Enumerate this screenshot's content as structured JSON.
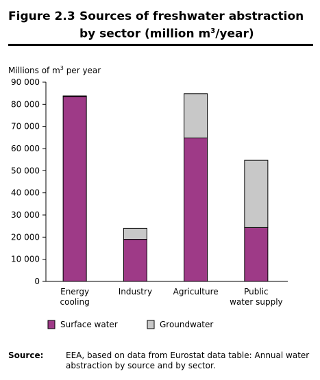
{
  "figure": {
    "number": "Figure 2.3",
    "title_line1": "Sources of freshwater abstraction",
    "title_line2_prefix": "by sector (million m",
    "title_line2_sup": "3",
    "title_line2_suffix": "/year)"
  },
  "chart_data": {
    "type": "bar",
    "stacked": true,
    "ylabel_prefix": "Millions of m",
    "ylabel_sup": "3",
    "ylabel_suffix": " per year",
    "ylim": [
      0,
      90000
    ],
    "yticks": [
      0,
      10000,
      20000,
      30000,
      40000,
      50000,
      60000,
      70000,
      80000,
      90000
    ],
    "ytick_labels": [
      "0",
      "10 000",
      "20 000",
      "30 000",
      "40 000",
      "50 000",
      "60 000",
      "70 000",
      "80 000",
      "90 000"
    ],
    "categories": [
      [
        "Energy",
        "cooling"
      ],
      [
        "Industry"
      ],
      [
        "Agriculture"
      ],
      [
        "Public",
        "water supply"
      ]
    ],
    "series": [
      {
        "name": "Surface water",
        "color": "#9e3a87",
        "values": [
          83500,
          19000,
          64800,
          24300
        ]
      },
      {
        "name": "Groundwater",
        "color": "#c8c8c8",
        "values": [
          300,
          5000,
          20000,
          30400
        ]
      }
    ],
    "grid": false,
    "legend": "bottom"
  },
  "source": {
    "label": "Source:",
    "text": "EEA, based on data from Eurostat data table: Annual water abstraction by source and by sector."
  }
}
